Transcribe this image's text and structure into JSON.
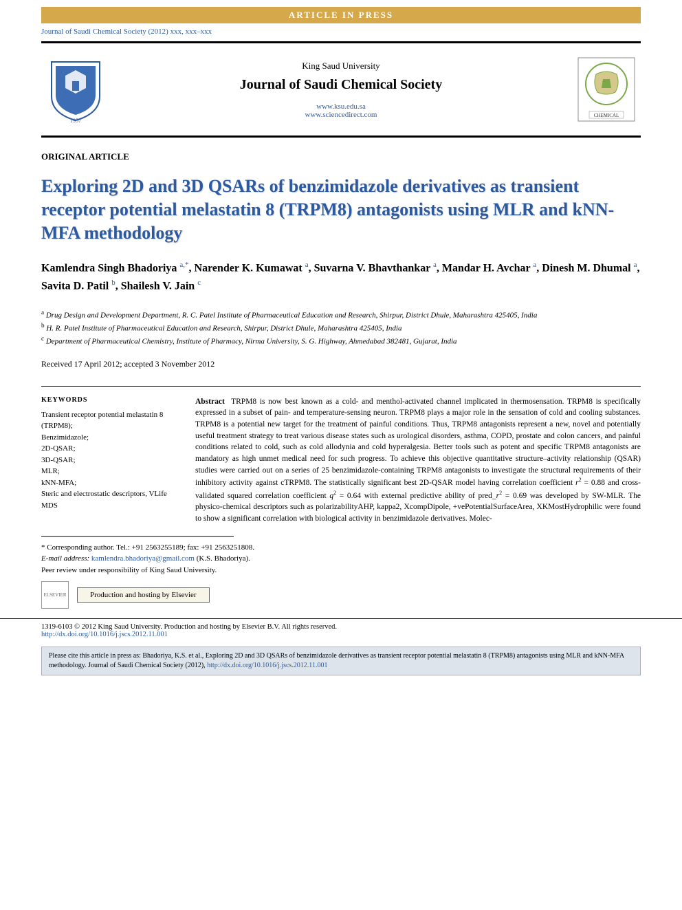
{
  "banner": {
    "text": "ARTICLE  IN  PRESS"
  },
  "citation_line": "Journal of Saudi Chemical Society (2012) xxx, xxx–xxx",
  "header": {
    "publisher": "King Saud University",
    "journal": "Journal of Saudi Chemical Society",
    "link1": "www.ksu.edu.sa",
    "link2": "www.sciencedirect.com",
    "logo_left": {
      "border_color": "#2c5aa0",
      "shield_color": "#3d6db5",
      "banner_color": "#b8941f",
      "year": "1957"
    },
    "logo_right": {
      "border_color": "#888",
      "badge_color": "#7ba848",
      "banner_text": "CHEMICAL"
    }
  },
  "article_type": "ORIGINAL ARTICLE",
  "title": "Exploring 2D and 3D QSARs of benzimidazole derivatives as transient receptor potential melastatin 8 (TRPM8) antagonists using MLR and kNN-MFA methodology",
  "authors_html": "Kamlendra Singh Bhadoriya <sup>a,*</sup>, Narender K. Kumawat <sup>a</sup>, Suvarna V. Bhavthankar <sup>a</sup>, Mandar H. Avchar <sup>a</sup>, Dinesh M. Dhumal <sup>a</sup>, Savita D. Patil <sup>b</sup>, Shailesh V. Jain <sup>c</sup>",
  "affiliations": [
    {
      "sup": "a",
      "text": "Drug Design and Development Department, R. C. Patel Institute of Pharmaceutical Education and Research, Shirpur, District Dhule, Maharashtra 425405, India"
    },
    {
      "sup": "b",
      "text": "H. R. Patel Institute of Pharmaceutical Education and Research, Shirpur, District Dhule, Maharashtra 425405, India"
    },
    {
      "sup": "c",
      "text": "Department of Pharmaceutical Chemistry, Institute of Pharmacy, Nirma University, S. G. Highway, Ahmedabad 382481, Gujarat, India"
    }
  ],
  "dates": "Received 17 April 2012; accepted 3 November 2012",
  "keywords": {
    "heading": "KEYWORDS",
    "items": "Transient receptor potential melastatin 8 (TRPM8);\nBenzimidazole;\n2D-QSAR;\n3D-QSAR;\nMLR;\nkNN-MFA;\nSteric and electrostatic descriptors, VLife MDS"
  },
  "abstract": {
    "label": "Abstract",
    "body_html": "TRPM8 is now best known as a cold- and menthol-activated channel implicated in thermosensation. TRPM8 is specifically expressed in a subset of pain- and temperature-sensing neuron. TRPM8 plays a major role in the sensation of cold and cooling substances. TRPM8 is a potential new target for the treatment of painful conditions. Thus, TRPM8 antagonists represent a new, novel and potentially useful treatment strategy to treat various disease states such as urological disorders, asthma, COPD, prostate and colon cancers, and painful conditions related to cold, such as cold allodynia and cold hyperalgesia. Better tools such as potent and specific TRPM8 antagonists are mandatory as high unmet medical need for such progress. To achieve this objective quantitative structure–activity relationship (QSAR) studies were carried out on a series of 25 benzimidazole-containing TRPM8 antagonists to investigate the structural requirements of their inhibitory activity against cTRPM8. The statistically significant best 2D-QSAR model having correlation coefficient <i>r</i><sup>2</sup> = 0.88 and cross-validated squared correlation coefficient <i>q</i><sup>2</sup> = 0.64 with external predictive ability of pred_<i>r</i><sup>2</sup> = 0.69 was developed by SW-MLR. The physico-chemical descriptors such as polarizabilityAHP, kappa2, XcompDipole, +vePotentialSurfaceArea, XKMostHydrophilic were found to show a significant correlation with biological activity in benzimidazole derivatives. Molec-"
  },
  "corresponding": {
    "line1": "* Corresponding author. Tel.: +91 2563255189; fax: +91 2563251808.",
    "email_label": "E-mail address:",
    "email": "kamlendra.bhadoriya@gmail.com",
    "email_suffix": "(K.S. Bhadoriya).",
    "peer": "Peer review under responsibility of King Saud University."
  },
  "hosting": {
    "elsevier": "ELSEVIER",
    "text": "Production and hosting by Elsevier"
  },
  "copyright": {
    "text": "1319-6103 © 2012 King Saud University. Production and hosting by Elsevier B.V. All rights reserved.",
    "doi": "http://dx.doi.org/10.1016/j.jscs.2012.11.001"
  },
  "cite_box": {
    "prefix": "Please cite this article in press as: Bhadoriya, K.S. et al., Exploring 2D and 3D QSARs of benzimidazole derivatives as transient receptor potential melastatin 8 (TRPM8) antagonists using MLR and kNN-MFA methodology. Journal of Saudi Chemical Society (2012), ",
    "doi": "http://dx.doi.org/10.1016/j.jscs.2012.11.001"
  },
  "colors": {
    "link": "#2c5aa0",
    "title": "#2c5aa0",
    "banner_bg": "#d4a84b",
    "cite_bg": "#dde4ec"
  }
}
